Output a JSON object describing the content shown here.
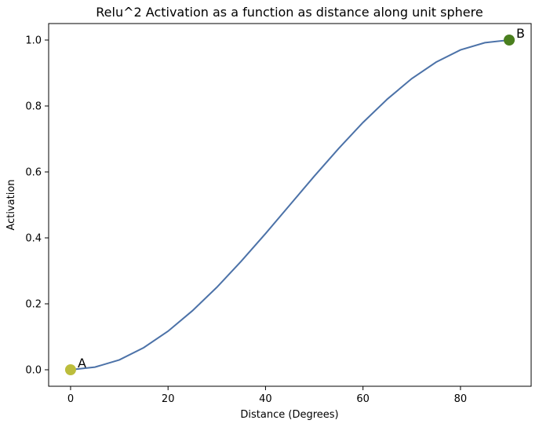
{
  "chart_data": {
    "type": "line",
    "title": "Relu^2 Activation as a function as distance along unit sphere",
    "xlabel": "Distance (Degrees)",
    "ylabel": "Activation",
    "xlim": [
      -4.5,
      94.5
    ],
    "ylim": [
      -0.05,
      1.05
    ],
    "xticks": [
      {
        "value": 0,
        "label": "0"
      },
      {
        "value": 20,
        "label": "20"
      },
      {
        "value": 40,
        "label": "40"
      },
      {
        "value": 60,
        "label": "60"
      },
      {
        "value": 80,
        "label": "80"
      }
    ],
    "yticks": [
      {
        "value": 0.0,
        "label": "0.0"
      },
      {
        "value": 0.2,
        "label": "0.2"
      },
      {
        "value": 0.4,
        "label": "0.4"
      },
      {
        "value": 0.6,
        "label": "0.6"
      },
      {
        "value": 0.8,
        "label": "0.8"
      },
      {
        "value": 1.0,
        "label": "1.0"
      }
    ],
    "grid": false,
    "legend": "none",
    "series": [
      {
        "color": "#4c72a8",
        "x": [
          0,
          5,
          10,
          15,
          20,
          25,
          30,
          35,
          40,
          45,
          50,
          55,
          60,
          65,
          70,
          75,
          80,
          85,
          90
        ],
        "y": [
          0.0,
          0.008,
          0.03,
          0.067,
          0.117,
          0.179,
          0.25,
          0.329,
          0.413,
          0.5,
          0.587,
          0.671,
          0.75,
          0.821,
          0.883,
          0.933,
          0.97,
          0.992,
          1.0
        ]
      }
    ],
    "points": [
      {
        "label": "A",
        "x": 0,
        "y": 0.0,
        "color": "#bcbd3c"
      },
      {
        "label": "B",
        "x": 90,
        "y": 1.0,
        "color": "#4a7f1e"
      }
    ]
  }
}
